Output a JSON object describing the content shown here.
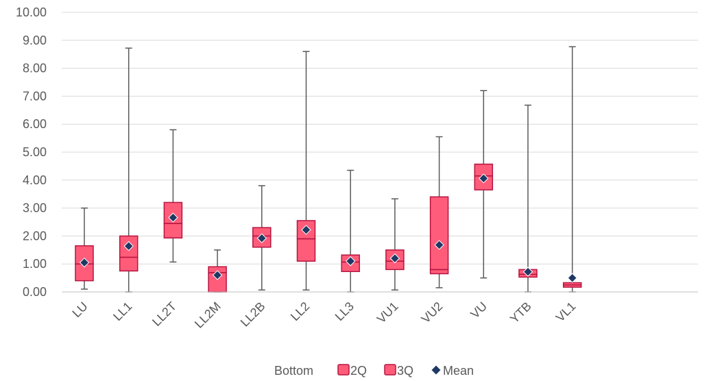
{
  "chart_data": {
    "type": "box",
    "categories": [
      "LU",
      "LL1",
      "LL2T",
      "LL2M",
      "LL2B",
      "LL2",
      "LL3",
      "VU1",
      "VU2",
      "VU",
      "YTB",
      "VL1"
    ],
    "ylim": [
      0,
      10
    ],
    "yticks": [
      "0.00",
      "1.00",
      "2.00",
      "3.00",
      "4.00",
      "5.00",
      "6.00",
      "7.00",
      "8.00",
      "9.00",
      "10.00"
    ],
    "grid": true,
    "legend_position": "bottom",
    "legend": [
      "Bottom",
      "2Q",
      "3Q",
      "Mean"
    ],
    "series": [
      {
        "name": "Bottom",
        "values": [
          0.4,
          0.75,
          1.93,
          0.0,
          1.6,
          1.1,
          0.73,
          0.8,
          0.65,
          3.65,
          0.53,
          0.17
        ]
      },
      {
        "name": "2Q",
        "values": [
          0.6,
          0.49,
          0.52,
          0.69,
          0.4,
          0.8,
          0.34,
          0.3,
          0.15,
          0.5,
          0.1,
          0.08
        ]
      },
      {
        "name": "3Q",
        "values": [
          0.65,
          0.76,
          0.75,
          0.21,
          0.3,
          0.65,
          0.25,
          0.4,
          2.6,
          0.42,
          0.17,
          0.08
        ]
      },
      {
        "name": "Mean",
        "values": [
          1.05,
          1.64,
          2.66,
          0.6,
          1.92,
          2.22,
          1.1,
          1.2,
          1.68,
          4.06,
          0.72,
          0.5
        ]
      }
    ],
    "whisker_min": [
      0.1,
      0.0,
      1.07,
      0.0,
      0.07,
      0.07,
      0.0,
      0.07,
      0.15,
      0.5,
      0.0,
      0.0
    ],
    "whisker_max": [
      3.0,
      8.72,
      5.8,
      1.5,
      3.8,
      8.6,
      4.35,
      3.33,
      5.55,
      7.2,
      6.68,
      8.77
    ],
    "colors": {
      "box_fill": "#ff5c7a",
      "box_stroke": "#b5143f",
      "mean_marker": "#1f3864",
      "whisker": "#595959",
      "grid": "#d9d9d9",
      "axis": "#bfbfbf"
    }
  }
}
